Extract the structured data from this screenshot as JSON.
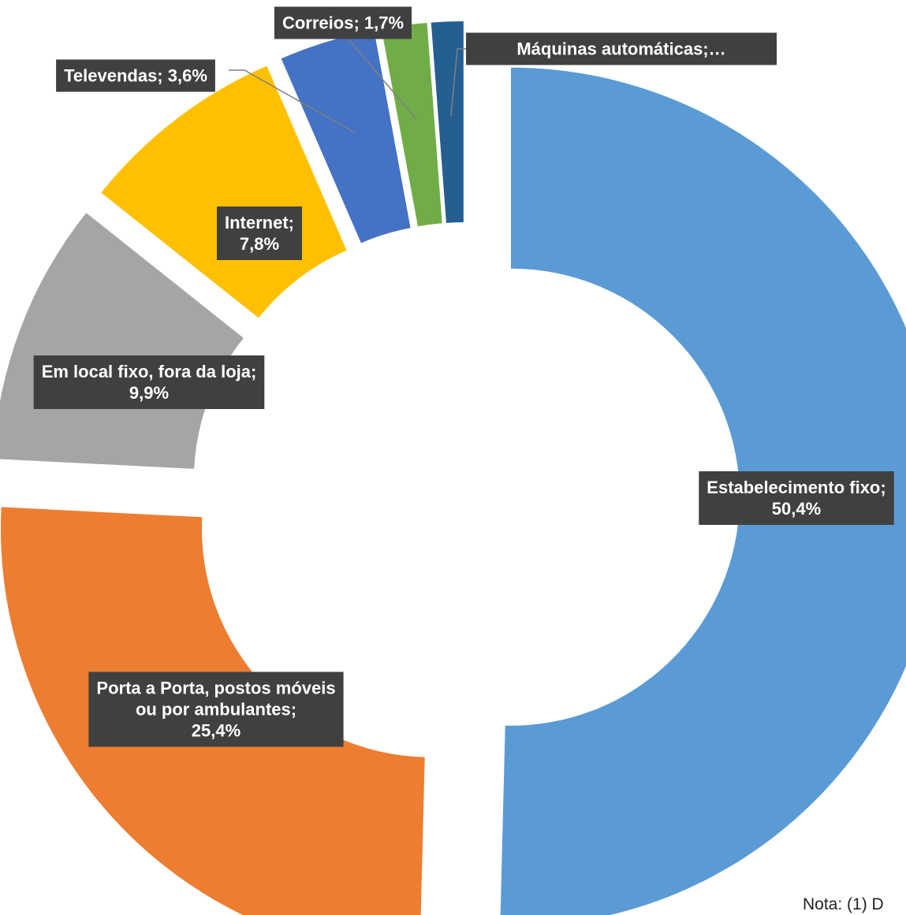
{
  "chart_data": {
    "type": "pie",
    "style": "doughnut-exploded",
    "slices": [
      {
        "label_lines": [
          "Estabelecimento fixo;",
          "50,4%"
        ],
        "value": 50.4,
        "color": "#5B9BD5"
      },
      {
        "label_lines": [
          "Porta a Porta, postos móveis",
          "ou por ambulantes;",
          "25,4%"
        ],
        "value": 25.4,
        "color": "#ED7D31"
      },
      {
        "label_lines": [
          "Em local fixo, fora da loja;",
          "9,9%"
        ],
        "value": 9.9,
        "color": "#A5A5A5"
      },
      {
        "label_lines": [
          "Internet;",
          "7,8%"
        ],
        "value": 7.8,
        "color": "#FFC000"
      },
      {
        "label_lines": [
          "Televendas; 3,6%"
        ],
        "value": 3.6,
        "color": "#4472C4"
      },
      {
        "label_lines": [
          "Correios; 1,7%"
        ],
        "value": 1.7,
        "color": "#70AD47"
      },
      {
        "label_lines": [
          "Máquinas automáticas;…"
        ],
        "value": 1.2,
        "color": "#255E91"
      }
    ],
    "label_style": {
      "box_color": "#404040",
      "text_color": "#ffffff"
    }
  },
  "note": "Nota: (1) D"
}
